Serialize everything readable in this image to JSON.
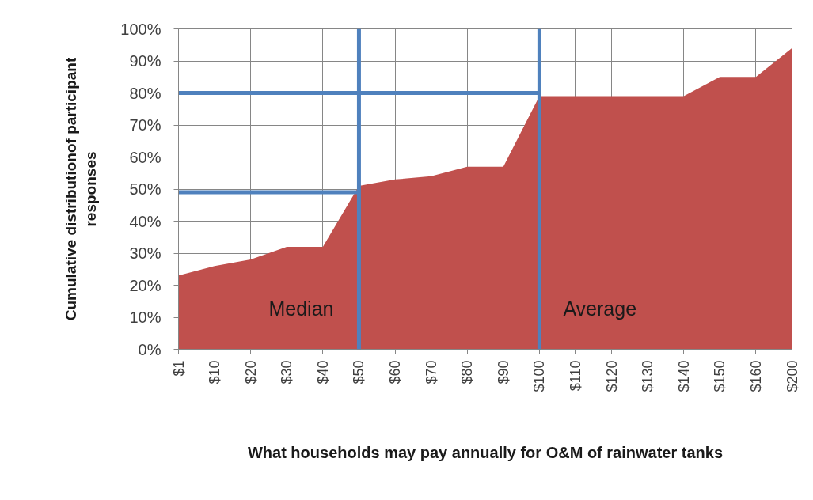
{
  "chart_data": {
    "type": "area",
    "xlabel": "What households may pay annually for O&M of rainwater tanks",
    "ylabel": "Cumulative distributionof participant responses",
    "categories": [
      "$1",
      "$10",
      "$20",
      "$30",
      "$40",
      "$50",
      "$60",
      "$70",
      "$80",
      "$90",
      "$100",
      "$110",
      "$120",
      "$130",
      "$140",
      "$150",
      "$160",
      "$200"
    ],
    "series": [
      {
        "color": "#c0504d",
        "values": [
          23,
          26,
          28,
          32,
          32,
          51,
          53,
          54,
          57,
          57,
          79,
          79,
          79,
          79,
          79,
          85,
          85,
          94
        ]
      },
      {
        "type": "line",
        "color": "#4f81bd",
        "x": [
          "$1",
          "$50"
        ],
        "values": [
          49,
          49
        ]
      },
      {
        "type": "line",
        "color": "#4f81bd",
        "x": [
          "$1",
          "$100"
        ],
        "values": [
          80,
          80
        ]
      }
    ],
    "ylim": [
      0,
      100
    ],
    "yticks": [
      {
        "value": 0,
        "label": "0%"
      },
      {
        "value": 10,
        "label": "10%"
      },
      {
        "value": 20,
        "label": "20%"
      },
      {
        "value": 30,
        "label": "30%"
      },
      {
        "value": 40,
        "label": "40%"
      },
      {
        "value": 50,
        "label": "50%"
      },
      {
        "value": 60,
        "label": "60%"
      },
      {
        "value": 70,
        "label": "70%"
      },
      {
        "value": 80,
        "label": "80%"
      },
      {
        "value": 90,
        "label": "90%"
      },
      {
        "value": 100,
        "label": "100%"
      }
    ],
    "grid": true,
    "ref_lines": [
      {
        "axis": "x",
        "value": "$50",
        "label": "Median",
        "color": "#4f81bd"
      },
      {
        "axis": "x",
        "value": "$100",
        "label": "Average",
        "color": "#4f81bd"
      }
    ]
  }
}
